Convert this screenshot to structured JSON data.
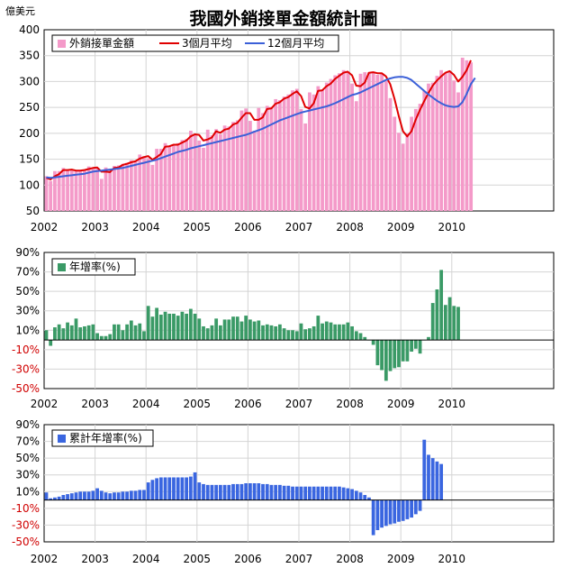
{
  "title": "我國外銷接單金額統計圖",
  "chart_data": [
    {
      "type": "bar",
      "title": "我國外銷接單金額統計圖",
      "ylabel": "億美元",
      "ylim": [
        50,
        400
      ],
      "yticks": [
        "50",
        "100",
        "150",
        "200",
        "250",
        "300",
        "350",
        "400"
      ],
      "xticks": [
        "2002",
        "2003",
        "2004",
        "2005",
        "2006",
        "2007",
        "2008",
        "2009",
        "2010"
      ],
      "x_start": "2002-01",
      "grid": true,
      "legend_position": "top-left",
      "legend": [
        "外銷接單金額",
        "3個月平均",
        "12個月平均"
      ],
      "colors": {
        "bars": "#f49ac9",
        "ma3": "#e00000",
        "ma12": "#3b60d8"
      },
      "series": [
        {
          "name": "外銷接單金額",
          "values": [
            117,
            108,
            127,
            127,
            133,
            128,
            128,
            129,
            128,
            130,
            136,
            134,
            132,
            112,
            134,
            128,
            137,
            138,
            141,
            143,
            148,
            147,
            159,
            156,
            152,
            139,
            170,
            170,
            181,
            175,
            178,
            181,
            187,
            189,
            205,
            199,
            186,
            172,
            207,
            196,
            208,
            198,
            215,
            213,
            222,
            225,
            244,
            248,
            224,
            205,
            249,
            239,
            253,
            251,
            266,
            264,
            271,
            275,
            283,
            286,
            247,
            219,
            279,
            275,
            291,
            284,
            298,
            305,
            312,
            316,
            322,
            319,
            296,
            262,
            315,
            318,
            318,
            319,
            313,
            316,
            301,
            268,
            232,
            201,
            180,
            200,
            232,
            247,
            257,
            282,
            296,
            298,
            311,
            322,
            317,
            320,
            302,
            279,
            346,
            341,
            337
          ]
        },
        {
          "name": "3個月平均",
          "values": [
            114,
            111,
            117,
            121,
            129,
            129,
            130,
            128,
            128,
            129,
            131,
            133,
            134,
            126,
            126,
            125,
            133,
            134,
            139,
            141,
            144,
            146,
            151,
            154,
            156,
            149,
            154,
            160,
            174,
            175,
            178,
            178,
            182,
            186,
            194,
            198,
            197,
            186,
            188,
            192,
            204,
            201,
            207,
            209,
            217,
            220,
            230,
            239,
            239,
            226,
            226,
            231,
            247,
            248,
            257,
            260,
            267,
            270,
            276,
            281,
            272,
            251,
            248,
            258,
            282,
            283,
            291,
            296,
            305,
            311,
            317,
            319,
            312,
            292,
            291,
            298,
            317,
            318,
            316,
            316,
            310,
            295,
            267,
            234,
            204,
            194,
            204,
            226,
            245,
            262,
            278,
            292,
            302,
            310,
            317,
            320,
            313,
            300,
            309,
            322,
            341
          ]
        },
        {
          "name": "12個月平均",
          "values": [
            115,
            114,
            115,
            116,
            117,
            118,
            119,
            120,
            121,
            122,
            124,
            126,
            127,
            128,
            129,
            130,
            131,
            132,
            133,
            135,
            137,
            139,
            141,
            143,
            145,
            147,
            149,
            152,
            155,
            158,
            161,
            164,
            166,
            168,
            171,
            173,
            175,
            177,
            179,
            181,
            183,
            185,
            187,
            189,
            191,
            193,
            195,
            197,
            200,
            203,
            206,
            209,
            213,
            217,
            221,
            225,
            228,
            231,
            234,
            237,
            240,
            242,
            244,
            246,
            248,
            250,
            252,
            255,
            258,
            262,
            266,
            270,
            274,
            276,
            279,
            283,
            287,
            291,
            295,
            299,
            303,
            306,
            308,
            309,
            309,
            307,
            303,
            296,
            289,
            282,
            275,
            269,
            263,
            258,
            254,
            252,
            251,
            252,
            260,
            276,
            295,
            307
          ]
        }
      ]
    },
    {
      "type": "bar",
      "ylim": [
        -50,
        90
      ],
      "yticks": [
        "-50%",
        "-30%",
        "-10%",
        "10%",
        "30%",
        "50%",
        "70%",
        "90%"
      ],
      "xticks": [
        "2002",
        "2003",
        "2004",
        "2005",
        "2006",
        "2007",
        "2008",
        "2009",
        "2010"
      ],
      "x_start": "2002-01",
      "grid": true,
      "legend_position": "top-left",
      "legend": [
        "年增率(%)"
      ],
      "colors": {
        "bars": "#3a9a66",
        "negative_tick": "#d00000"
      },
      "series": [
        {
          "name": "年增率(%)",
          "values": [
            10,
            -6,
            13,
            16,
            12,
            18,
            15,
            22,
            13,
            14,
            15,
            16,
            7,
            4,
            4,
            6,
            16,
            16,
            10,
            16,
            20,
            15,
            17,
            9,
            35,
            24,
            33,
            26,
            29,
            27,
            27,
            25,
            29,
            27,
            32,
            27,
            22,
            14,
            12,
            15,
            22,
            15,
            21,
            21,
            24,
            24,
            19,
            25,
            21,
            19,
            20,
            15,
            16,
            15,
            14,
            16,
            12,
            10,
            10,
            9,
            17,
            11,
            12,
            14,
            25,
            17,
            19,
            18,
            16,
            16,
            16,
            18,
            14,
            9,
            7,
            3,
            0,
            -5,
            -26,
            -31,
            -42,
            -32,
            -29,
            -28,
            -22,
            -22,
            -12,
            -9,
            -14,
            0,
            3,
            38,
            52,
            72,
            36,
            44,
            35,
            34
          ]
        }
      ]
    },
    {
      "type": "bar",
      "ylim": [
        -50,
        90
      ],
      "yticks": [
        "-50%",
        "-30%",
        "-10%",
        "10%",
        "30%",
        "50%",
        "70%",
        "90%"
      ],
      "xticks": [
        "2002",
        "2003",
        "2004",
        "2005",
        "2006",
        "2007",
        "2008",
        "2009",
        "2010"
      ],
      "x_start": "2002-01",
      "grid": true,
      "legend_position": "top-left",
      "legend": [
        "累計年增率(%)"
      ],
      "colors": {
        "bars": "#3a66e0",
        "negative_tick": "#d00000"
      },
      "series": [
        {
          "name": "累計年增率(%)",
          "values": [
            9,
            2,
            3,
            4,
            6,
            7,
            8,
            9,
            10,
            10,
            10,
            11,
            14,
            11,
            9,
            8,
            9,
            9,
            10,
            10,
            11,
            11,
            12,
            12,
            21,
            24,
            26,
            27,
            27,
            27,
            27,
            27,
            27,
            27,
            28,
            33,
            21,
            19,
            18,
            18,
            18,
            18,
            18,
            18,
            19,
            19,
            19,
            20,
            20,
            20,
            20,
            19,
            19,
            18,
            18,
            18,
            17,
            17,
            16,
            16,
            16,
            16,
            16,
            16,
            16,
            16,
            16,
            16,
            16,
            16,
            15,
            14,
            13,
            11,
            9,
            6,
            3,
            -42,
            -36,
            -33,
            -31,
            -29,
            -28,
            -26,
            -25,
            -23,
            -21,
            -17,
            -13,
            72,
            54,
            50,
            46,
            43
          ]
        }
      ]
    }
  ]
}
